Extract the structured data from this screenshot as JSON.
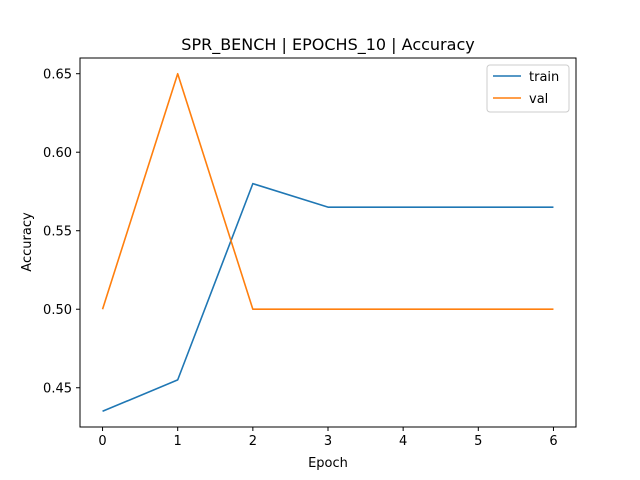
{
  "chart_data": {
    "type": "line",
    "title": "SPR_BENCH | EPOCHS_10 | Accuracy",
    "xlabel": "Epoch",
    "ylabel": "Accuracy",
    "x": [
      0,
      1,
      2,
      3,
      4,
      5,
      6
    ],
    "xlim": [
      -0.3,
      6.3
    ],
    "ylim": [
      0.425,
      0.66
    ],
    "xticks": [
      "0",
      "1",
      "2",
      "3",
      "4",
      "5",
      "6"
    ],
    "yticks": [
      "0.45",
      "0.50",
      "0.55",
      "0.60",
      "0.65"
    ],
    "grid": false,
    "legend_position": "upper-right",
    "series": [
      {
        "name": "train",
        "color": "#1f77b4",
        "values": [
          0.435,
          0.455,
          0.58,
          0.565,
          0.565,
          0.565,
          0.565
        ]
      },
      {
        "name": "val",
        "color": "#ff7f0e",
        "values": [
          0.5,
          0.65,
          0.5,
          0.5,
          0.5,
          0.5,
          0.5
        ]
      }
    ]
  }
}
